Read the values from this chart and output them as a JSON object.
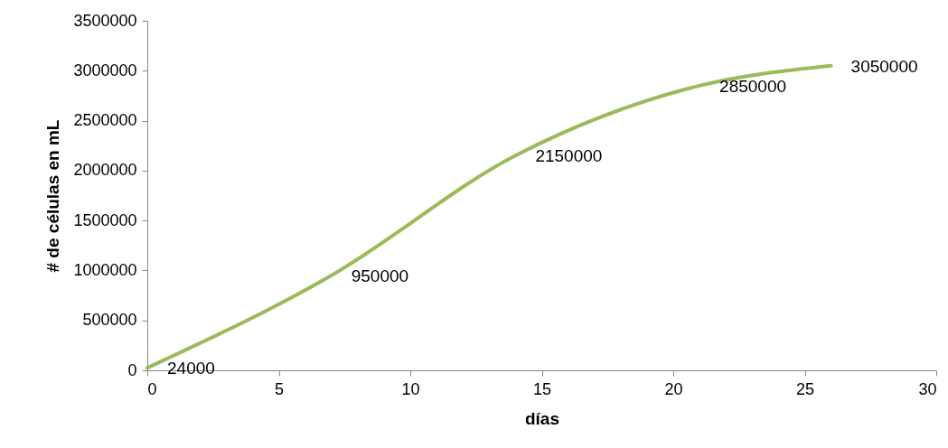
{
  "chart_data": {
    "type": "line",
    "xlabel": "días",
    "ylabel": "# de células en mL",
    "x": [
      0,
      7,
      14,
      21,
      26
    ],
    "series": [
      {
        "color": "#9bbb59",
        "values": [
          24000,
          950000,
          2150000,
          2850000,
          3050000
        ]
      }
    ],
    "data_labels": true,
    "xlim": [
      0,
      30
    ],
    "xticks": [
      0,
      5,
      10,
      15,
      20,
      25,
      30
    ],
    "ylim": [
      0,
      3500000
    ],
    "yticks": [
      0,
      500000,
      1000000,
      1500000,
      2000000,
      2500000,
      3000000,
      3500000
    ],
    "grid": false,
    "marker": "none",
    "line_style": "solid"
  }
}
